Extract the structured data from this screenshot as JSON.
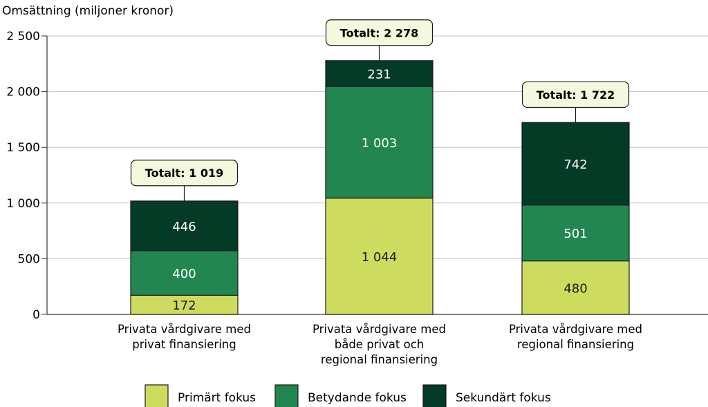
{
  "chart_data": {
    "type": "bar",
    "stacked": true,
    "ylabel": "Omsättning (miljoner kronor)",
    "ylim": [
      0,
      2500
    ],
    "yticks": [
      0,
      500,
      1000,
      1500,
      2000,
      2500
    ],
    "ytick_labels": [
      "0",
      "500",
      "1 000",
      "1 500",
      "2 000",
      "2 500"
    ],
    "grid": true,
    "legend_position": "bottom",
    "categories": [
      [
        "Privata vårdgivare med",
        "privat finansiering"
      ],
      [
        "Privata vårdgivare med",
        "både privat och",
        "regional finansiering"
      ],
      [
        "Privata vårdgivare med",
        "regional finansiering"
      ]
    ],
    "series": [
      {
        "name": "Primärt fokus",
        "color": "#cddc5e",
        "text_color": "#1a1a1a",
        "values": [
          172,
          1044,
          480
        ],
        "labels": [
          "172",
          "1 044",
          "480"
        ]
      },
      {
        "name": "Betydande fokus",
        "color": "#218650",
        "text_color": "#ffffff",
        "values": [
          400,
          1003,
          501
        ],
        "labels": [
          "400",
          "1 003",
          "501"
        ]
      },
      {
        "name": "Sekundärt fokus",
        "color": "#033b26",
        "text_color": "#ffffff",
        "values": [
          446,
          231,
          742
        ],
        "labels": [
          "446",
          "231",
          "742"
        ]
      }
    ],
    "totals": [
      {
        "value": 1019,
        "label": "Totalt: 1 019"
      },
      {
        "value": 2278,
        "label": "Totalt: 2 278"
      },
      {
        "value": 1722,
        "label": "Totalt: 1 722"
      }
    ],
    "total_box_color": "#f5f8dc"
  }
}
